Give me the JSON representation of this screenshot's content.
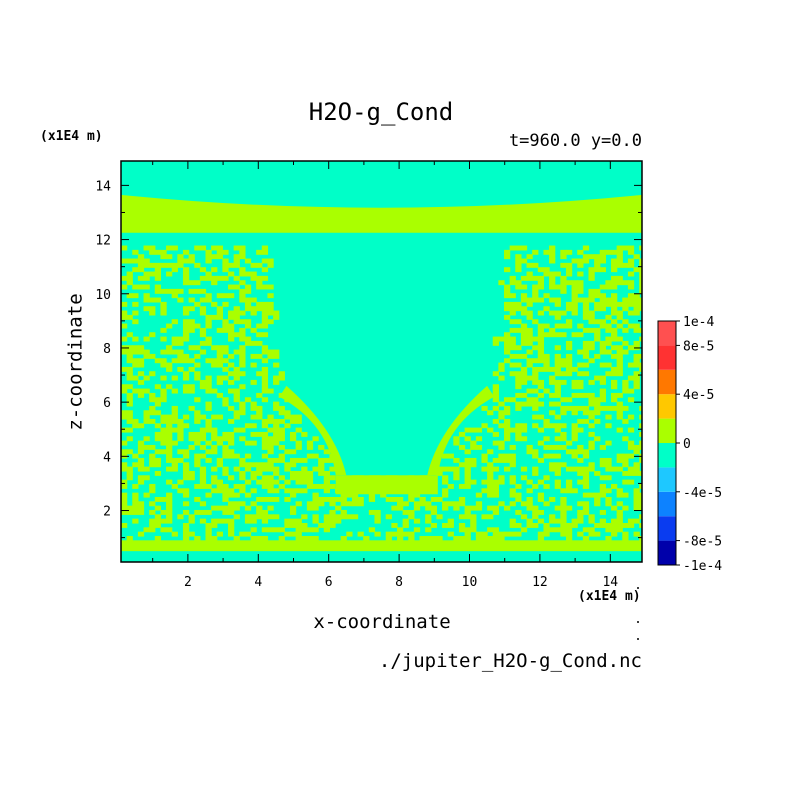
{
  "chart_data": {
    "type": "heatmap",
    "title": "H2O-g_Cond",
    "subtitle": "t=960.0 y=0.0",
    "xlabel": "x-coordinate",
    "ylabel": "z-coordinate",
    "x_unit": "(x1E4 m)",
    "y_unit": "(x1E4 m)",
    "source_file": "./jupiter_H2O-g_Cond.nc",
    "xlim": [
      0.1,
      14.9
    ],
    "ylim": [
      0.1,
      14.9
    ],
    "xticks": [
      2,
      4,
      6,
      8,
      10,
      12,
      14
    ],
    "yticks": [
      2,
      4,
      6,
      8,
      10,
      12,
      14
    ],
    "colorbar": {
      "range": [
        -0.0001,
        0.0001
      ],
      "levels": [
        -0.0001,
        -8e-05,
        -6e-05,
        -4e-05,
        -2e-05,
        0,
        2e-05,
        4e-05,
        6e-05,
        8e-05,
        0.0001
      ],
      "colors": [
        "#0000aa",
        "#0a3cf0",
        "#0d82ff",
        "#1ec8ff",
        "#00ffc8",
        "#aaff00",
        "#ffc800",
        "#ff7800",
        "#ff3232",
        "#ff5050"
      ],
      "tick_labels": [
        "1e-4",
        "8e-5",
        "4e-5",
        "0",
        "-4e-5",
        "-8e-5",
        "-1e-4"
      ],
      "tick_values": [
        0.0001,
        8e-05,
        4e-05,
        0,
        -4e-05,
        -8e-05,
        -0.0001
      ]
    },
    "field_description": {
      "dominant_value_class": "near-zero negative (cyan)",
      "regions": [
        {
          "name": "upper-uniform",
          "z_range": [
            13.6,
            14.9
          ],
          "value_class": "cyan"
        },
        {
          "name": "upper-band",
          "z_range": [
            12.2,
            13.6
          ],
          "value_class": "yellow-green"
        },
        {
          "name": "noisy-layer",
          "z_range": [
            0.5,
            11.7
          ],
          "value_class": "mixed cyan / yellow-green"
        },
        {
          "name": "central-plume",
          "x_range": [
            4.4,
            11.0
          ],
          "z_range": [
            3.2,
            11.7
          ],
          "value_class": "cyan"
        },
        {
          "name": "bottom-band",
          "z_range": [
            0.5,
            0.9
          ],
          "value_class": "yellow-green"
        }
      ]
    }
  }
}
